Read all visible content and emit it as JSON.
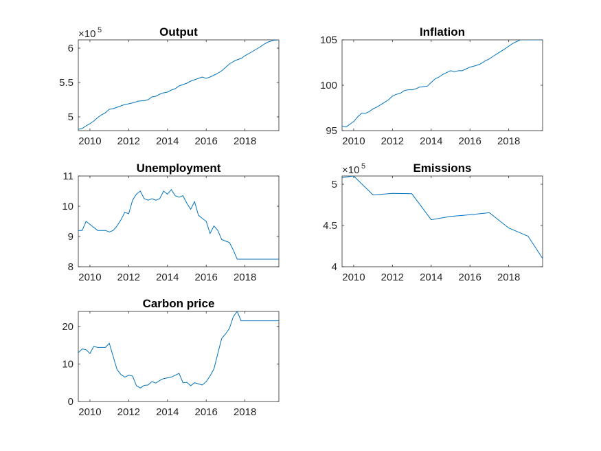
{
  "figure": {
    "background": "#ffffff",
    "axis_color": "#262626",
    "line_color": "#0072bd"
  },
  "chart_data": [
    {
      "type": "line",
      "title": "Output",
      "multiplier_label": "×10",
      "multiplier_exponent": "5",
      "xlim": [
        2009.4,
        2019.75
      ],
      "ylim": [
        480000,
        612000
      ],
      "xticks": [
        2010,
        2012,
        2014,
        2016,
        2018
      ],
      "xtick_labels": [
        "2010",
        "2012",
        "2014",
        "2016",
        "2018"
      ],
      "yticks": [
        500000,
        550000,
        600000
      ],
      "ytick_labels": [
        "5",
        "5.5",
        "6"
      ],
      "series": [
        {
          "x": [
            2009.4,
            2009.6,
            2009.8,
            2010.0,
            2010.2,
            2010.4,
            2010.6,
            2010.8,
            2011.0,
            2011.2,
            2011.5,
            2011.8,
            2012.0,
            2012.3,
            2012.5,
            2012.8,
            2013.0,
            2013.2,
            2013.4,
            2013.6,
            2013.8,
            2014.0,
            2014.2,
            2014.4,
            2014.6,
            2014.8,
            2015.0,
            2015.2,
            2015.5,
            2015.8,
            2016.0,
            2016.2,
            2016.5,
            2016.8,
            2017.0,
            2017.2,
            2017.5,
            2017.8,
            2018.0,
            2018.2,
            2018.5,
            2018.8,
            2019.0,
            2019.2,
            2019.5,
            2019.75
          ],
          "y": [
            482000,
            483000,
            487000,
            490000,
            494000,
            499000,
            503000,
            506000,
            511000,
            512000,
            515000,
            518000,
            519000,
            521000,
            523000,
            523500,
            525000,
            529000,
            530000,
            533000,
            535000,
            536000,
            539000,
            541000,
            545000,
            547000,
            549000,
            552000,
            555000,
            558000,
            556000,
            558000,
            562000,
            567000,
            572000,
            577000,
            582000,
            585000,
            589000,
            592000,
            597000,
            602000,
            606000,
            609000,
            611500,
            612000
          ]
        }
      ]
    },
    {
      "type": "line",
      "title": "Inflation",
      "xlim": [
        2009.4,
        2019.75
      ],
      "ylim": [
        95,
        105
      ],
      "xticks": [
        2010,
        2012,
        2014,
        2016,
        2018
      ],
      "xtick_labels": [
        "2010",
        "2012",
        "2014",
        "2016",
        "2018"
      ],
      "yticks": [
        95,
        100,
        105
      ],
      "ytick_labels": [
        "95",
        "100",
        "105"
      ],
      "series": [
        {
          "x": [
            2009.4,
            2009.6,
            2009.8,
            2010.0,
            2010.2,
            2010.4,
            2010.6,
            2010.8,
            2011.0,
            2011.2,
            2011.5,
            2011.8,
            2012.0,
            2012.2,
            2012.4,
            2012.6,
            2012.8,
            2013.0,
            2013.2,
            2013.4,
            2013.6,
            2013.8,
            2014.0,
            2014.2,
            2014.4,
            2014.6,
            2014.8,
            2015.0,
            2015.2,
            2015.4,
            2015.6,
            2015.8,
            2016.0,
            2016.2,
            2016.5,
            2016.8,
            2017.0,
            2017.2,
            2017.5,
            2017.8,
            2018.0,
            2018.2,
            2018.4,
            2018.6,
            2018.8,
            2019.0,
            2019.2,
            2019.4,
            2019.6,
            2019.75
          ],
          "y": [
            95.5,
            95.4,
            95.7,
            96.0,
            96.5,
            96.9,
            96.9,
            97.1,
            97.4,
            97.6,
            98.0,
            98.4,
            98.8,
            99.0,
            99.1,
            99.4,
            99.5,
            99.5,
            99.6,
            99.8,
            99.85,
            99.9,
            100.3,
            100.7,
            100.9,
            101.2,
            101.4,
            101.6,
            101.5,
            101.6,
            101.6,
            101.8,
            102.0,
            102.1,
            102.3,
            102.7,
            102.9,
            103.2,
            103.6,
            104.0,
            104.3,
            104.6,
            104.8,
            105.0,
            105.0,
            105.0,
            105.0,
            105.0,
            105.0,
            105.0
          ]
        }
      ]
    },
    {
      "type": "line",
      "title": "Unemployment",
      "xlim": [
        2009.4,
        2019.75
      ],
      "ylim": [
        8,
        11
      ],
      "xticks": [
        2010,
        2012,
        2014,
        2016,
        2018
      ],
      "xtick_labels": [
        "2010",
        "2012",
        "2014",
        "2016",
        "2018"
      ],
      "yticks": [
        8,
        9,
        10,
        11
      ],
      "ytick_labels": [
        "8",
        "9",
        "10",
        "11"
      ],
      "series": [
        {
          "x": [
            2009.4,
            2009.6,
            2009.8,
            2010.0,
            2010.2,
            2010.4,
            2010.6,
            2010.8,
            2011.0,
            2011.2,
            2011.4,
            2011.6,
            2011.8,
            2012.0,
            2012.2,
            2012.4,
            2012.6,
            2012.8,
            2013.0,
            2013.2,
            2013.4,
            2013.6,
            2013.8,
            2014.0,
            2014.2,
            2014.4,
            2014.6,
            2014.8,
            2015.0,
            2015.2,
            2015.4,
            2015.6,
            2015.8,
            2016.0,
            2016.2,
            2016.4,
            2016.6,
            2016.8,
            2017.0,
            2017.2,
            2017.4,
            2017.6,
            2017.8,
            2018.0,
            2018.2,
            2018.4,
            2018.6,
            2018.8,
            2019.0,
            2019.2,
            2019.4,
            2019.6,
            2019.75
          ],
          "y": [
            9.2,
            9.2,
            9.5,
            9.4,
            9.3,
            9.2,
            9.2,
            9.2,
            9.15,
            9.2,
            9.35,
            9.55,
            9.8,
            9.75,
            10.2,
            10.4,
            10.5,
            10.25,
            10.2,
            10.25,
            10.2,
            10.25,
            10.5,
            10.4,
            10.55,
            10.35,
            10.3,
            10.35,
            10.1,
            9.9,
            10.15,
            9.7,
            9.6,
            9.5,
            9.1,
            9.35,
            9.2,
            8.9,
            8.85,
            8.8,
            8.55,
            8.25,
            8.25,
            8.25,
            8.25,
            8.25,
            8.25,
            8.25,
            8.25,
            8.25,
            8.25,
            8.25,
            8.25
          ]
        }
      ]
    },
    {
      "type": "line",
      "title": "Emissions",
      "multiplier_label": "×10",
      "multiplier_exponent": "5",
      "xlim": [
        2009.4,
        2019.75
      ],
      "ylim": [
        400000,
        510000
      ],
      "xticks": [
        2010,
        2012,
        2014,
        2016,
        2018
      ],
      "xtick_labels": [
        "2010",
        "2012",
        "2014",
        "2016",
        "2018"
      ],
      "yticks": [
        400000,
        450000,
        500000
      ],
      "ytick_labels": [
        "4",
        "4.5",
        "5"
      ],
      "series": [
        {
          "x": [
            2009.4,
            2010.0,
            2011.0,
            2012.0,
            2013.0,
            2014.0,
            2015.0,
            2016.0,
            2017.0,
            2018.0,
            2019.0,
            2019.75
          ],
          "y": [
            508000,
            510000,
            487000,
            489000,
            488500,
            457000,
            461000,
            463000,
            465500,
            447000,
            437000,
            410000
          ]
        }
      ]
    },
    {
      "type": "line",
      "title": "Carbon price",
      "xlim": [
        2009.4,
        2019.75
      ],
      "ylim": [
        0,
        24
      ],
      "xticks": [
        2010,
        2012,
        2014,
        2016,
        2018
      ],
      "xtick_labels": [
        "2010",
        "2012",
        "2014",
        "2016",
        "2018"
      ],
      "yticks": [
        0,
        10,
        20
      ],
      "ytick_labels": [
        "0",
        "10",
        "20"
      ],
      "series": [
        {
          "x": [
            2009.4,
            2009.6,
            2009.8,
            2010.0,
            2010.2,
            2010.4,
            2010.6,
            2010.8,
            2011.0,
            2011.2,
            2011.4,
            2011.6,
            2011.8,
            2012.0,
            2012.2,
            2012.4,
            2012.6,
            2012.8,
            2013.0,
            2013.2,
            2013.4,
            2013.6,
            2013.8,
            2014.0,
            2014.2,
            2014.4,
            2014.6,
            2014.8,
            2015.0,
            2015.2,
            2015.4,
            2015.6,
            2015.8,
            2016.0,
            2016.2,
            2016.4,
            2016.6,
            2016.8,
            2017.0,
            2017.2,
            2017.4,
            2017.6,
            2017.8,
            2018.0,
            2018.2,
            2018.4,
            2018.6,
            2018.8,
            2019.0,
            2019.2,
            2019.4,
            2019.6,
            2019.75
          ],
          "y": [
            13,
            14,
            13.8,
            12.8,
            14.7,
            14.4,
            14.4,
            14.4,
            15.5,
            12,
            8.5,
            7.2,
            6.5,
            7,
            6.8,
            4.2,
            3.6,
            4.3,
            4.4,
            5.3,
            4.9,
            5.6,
            6.1,
            6.3,
            6.5,
            7,
            7.5,
            5,
            5.1,
            4.2,
            5,
            4.7,
            4.4,
            5.3,
            6.8,
            8.7,
            12.8,
            16.8,
            18,
            19.5,
            22.6,
            24,
            21.5,
            21.5,
            21.5,
            21.5,
            21.5,
            21.5,
            21.5,
            21.5,
            21.5,
            21.5,
            21.5
          ]
        }
      ]
    }
  ]
}
